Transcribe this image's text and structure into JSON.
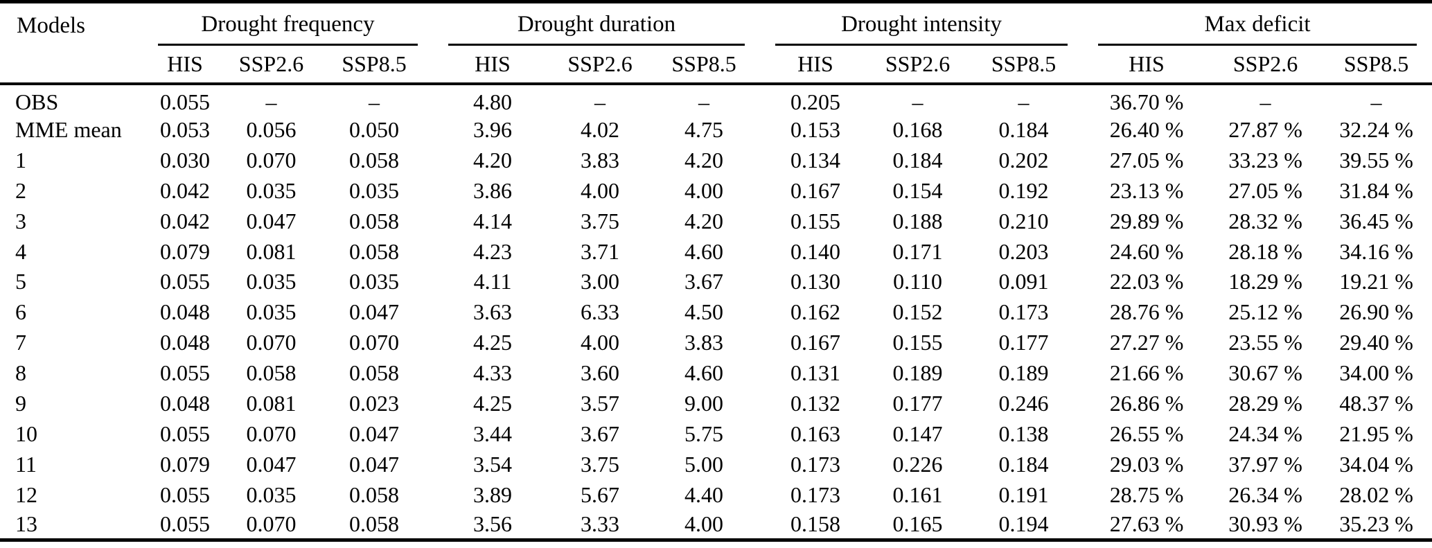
{
  "table": {
    "row_header_label": "Models",
    "groups": [
      {
        "label": "Drought frequency"
      },
      {
        "label": "Drought duration"
      },
      {
        "label": "Drought intensity"
      },
      {
        "label": "Max deficit"
      }
    ],
    "subheaders": [
      "HIS",
      "SSP2.6",
      "SSP8.5"
    ],
    "missing_marker": "–",
    "rows": [
      {
        "model": "OBS",
        "cells": [
          "0.055",
          "–",
          "–",
          "4.80",
          "–",
          "–",
          "0.205",
          "–",
          "–",
          "36.70 %",
          "–",
          "–"
        ]
      },
      {
        "model": "MME mean",
        "cells": [
          "0.053",
          "0.056",
          "0.050",
          "3.96",
          "4.02",
          "4.75",
          "0.153",
          "0.168",
          "0.184",
          "26.40 %",
          "27.87 %",
          "32.24 %"
        ]
      },
      {
        "model": "1",
        "cells": [
          "0.030",
          "0.070",
          "0.058",
          "4.20",
          "3.83",
          "4.20",
          "0.134",
          "0.184",
          "0.202",
          "27.05 %",
          "33.23 %",
          "39.55 %"
        ]
      },
      {
        "model": "2",
        "cells": [
          "0.042",
          "0.035",
          "0.035",
          "3.86",
          "4.00",
          "4.00",
          "0.167",
          "0.154",
          "0.192",
          "23.13 %",
          "27.05 %",
          "31.84 %"
        ]
      },
      {
        "model": "3",
        "cells": [
          "0.042",
          "0.047",
          "0.058",
          "4.14",
          "3.75",
          "4.20",
          "0.155",
          "0.188",
          "0.210",
          "29.89 %",
          "28.32 %",
          "36.45 %"
        ]
      },
      {
        "model": "4",
        "cells": [
          "0.079",
          "0.081",
          "0.058",
          "4.23",
          "3.71",
          "4.60",
          "0.140",
          "0.171",
          "0.203",
          "24.60 %",
          "28.18 %",
          "34.16 %"
        ]
      },
      {
        "model": "5",
        "cells": [
          "0.055",
          "0.035",
          "0.035",
          "4.11",
          "3.00",
          "3.67",
          "0.130",
          "0.110",
          "0.091",
          "22.03 %",
          "18.29 %",
          "19.21 %"
        ]
      },
      {
        "model": "6",
        "cells": [
          "0.048",
          "0.035",
          "0.047",
          "3.63",
          "6.33",
          "4.50",
          "0.162",
          "0.152",
          "0.173",
          "28.76 %",
          "25.12 %",
          "26.90 %"
        ]
      },
      {
        "model": "7",
        "cells": [
          "0.048",
          "0.070",
          "0.070",
          "4.25",
          "4.00",
          "3.83",
          "0.167",
          "0.155",
          "0.177",
          "27.27 %",
          "23.55 %",
          "29.40 %"
        ]
      },
      {
        "model": "8",
        "cells": [
          "0.055",
          "0.058",
          "0.058",
          "4.33",
          "3.60",
          "4.60",
          "0.131",
          "0.189",
          "0.189",
          "21.66 %",
          "30.67 %",
          "34.00 %"
        ]
      },
      {
        "model": "9",
        "cells": [
          "0.048",
          "0.081",
          "0.023",
          "4.25",
          "3.57",
          "9.00",
          "0.132",
          "0.177",
          "0.246",
          "26.86 %",
          "28.29 %",
          "48.37 %"
        ]
      },
      {
        "model": "10",
        "cells": [
          "0.055",
          "0.070",
          "0.047",
          "3.44",
          "3.67",
          "5.75",
          "0.163",
          "0.147",
          "0.138",
          "26.55 %",
          "24.34 %",
          "21.95 %"
        ]
      },
      {
        "model": "11",
        "cells": [
          "0.079",
          "0.047",
          "0.047",
          "3.54",
          "3.75",
          "5.00",
          "0.173",
          "0.226",
          "0.184",
          "29.03 %",
          "37.97 %",
          "34.04 %"
        ]
      },
      {
        "model": "12",
        "cells": [
          "0.055",
          "0.035",
          "0.058",
          "3.89",
          "5.67",
          "4.40",
          "0.173",
          "0.161",
          "0.191",
          "28.75 %",
          "26.34 %",
          "28.02 %"
        ]
      },
      {
        "model": "13",
        "cells": [
          "0.055",
          "0.070",
          "0.058",
          "3.56",
          "3.33",
          "4.00",
          "0.158",
          "0.165",
          "0.194",
          "27.63 %",
          "30.93 %",
          "35.23 %"
        ]
      }
    ]
  }
}
